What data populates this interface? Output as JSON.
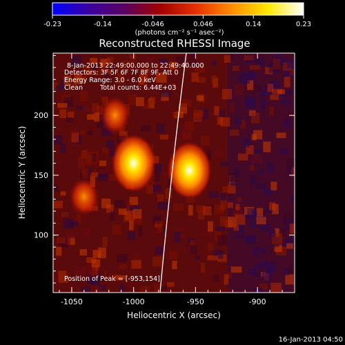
{
  "colorbar": {
    "ticks": [
      "-0.23",
      "-0.14",
      "-0.046",
      "0.046",
      "0.14",
      "0.23"
    ],
    "units_label": "(photons cm⁻² s⁻¹ asec⁻²)",
    "stops": [
      "#0000ff",
      "#3a00a0",
      "#5a0060",
      "#a00000",
      "#e63000",
      "#ff8c00",
      "#ffe800",
      "#ffffff"
    ]
  },
  "title": "Reconstructed RHESSI Image",
  "info": {
    "time_range": "8-Jan-2013 22:49:00.000 to 22:49:40.000",
    "detectors": "Detectors: 3F 5F 6F 7F 8F 9F, Att 0",
    "energy": "Energy Range: 3.0 - 6.0 keV",
    "method": "Clean",
    "total_counts": "Total counts: 6.44E+03"
  },
  "peak_label": "Position of Peak = [-953,154]",
  "axes": {
    "xlabel": "Heliocentric X (arcsec)",
    "ylabel": "Heliocentric Y (arcsec)",
    "x_ticks": [
      "-1050",
      "-1000",
      "-950",
      "-900"
    ],
    "y_ticks": [
      "200",
      "150",
      "100"
    ],
    "x_range": [
      -1065,
      -870
    ],
    "y_range": [
      52,
      252
    ]
  },
  "map_data": {
    "sources": [
      {
        "x": -1000,
        "y": 160,
        "level": 1.0
      },
      {
        "x": -955,
        "y": 154,
        "level": 1.0
      },
      {
        "x": -1040,
        "y": 132,
        "level": 0.45
      },
      {
        "x": -1015,
        "y": 200,
        "level": 0.55
      }
    ],
    "limb_line": true,
    "colormap": "red-yellow-white on black/blue"
  },
  "timestamp": "16-Jan-2013 04:50"
}
